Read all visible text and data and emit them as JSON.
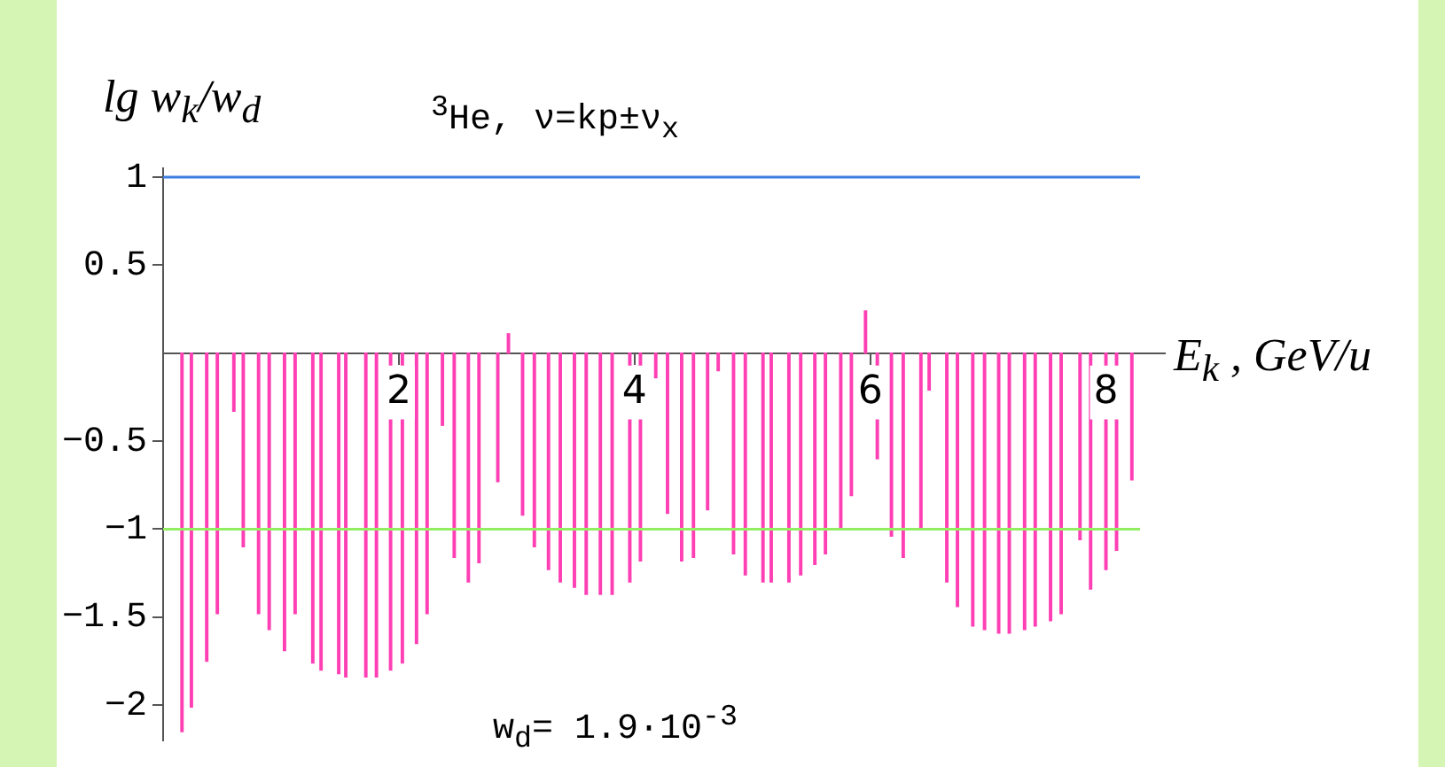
{
  "chart_data": {
    "type": "bar",
    "title": "$^{3}$He,   ν=kp±ν$_{x}$",
    "xlabel": "E$_{k}$ , GeV/u",
    "ylabel": "lg w$_{k}$/w$_{d}$",
    "annotations": [
      "w$_{d}$= 1.9·10$^{-3}$"
    ],
    "x": [
      0.16,
      0.24,
      0.37,
      0.46,
      0.6,
      0.68,
      0.81,
      0.9,
      1.03,
      1.12,
      1.27,
      1.34,
      1.49,
      1.55,
      1.72,
      1.81,
      1.93,
      2.03,
      2.15,
      2.24,
      2.37,
      2.47,
      2.59,
      2.68,
      2.84,
      2.93,
      3.05,
      3.15,
      3.27,
      3.37,
      3.49,
      3.59,
      3.71,
      3.81,
      3.96,
      4.05,
      4.18,
      4.28,
      4.4,
      4.5,
      4.62,
      4.71,
      4.84,
      4.94,
      5.09,
      5.16,
      5.31,
      5.41,
      5.53,
      5.62,
      5.75,
      5.84,
      5.96,
      6.06,
      6.18,
      6.28,
      6.43,
      6.5,
      6.65,
      6.74,
      6.87,
      6.97,
      7.09,
      7.18,
      7.31,
      7.4,
      7.53,
      7.62,
      7.78,
      7.87,
      8.0,
      8.09,
      8.22
    ],
    "values": [
      -2.15,
      -2.01,
      -1.75,
      -1.48,
      -0.33,
      -1.1,
      -1.48,
      -1.57,
      -1.69,
      -1.48,
      -1.76,
      -1.8,
      -1.82,
      -1.84,
      -1.84,
      -1.84,
      -1.8,
      -1.76,
      -1.65,
      -1.48,
      -0.41,
      -1.16,
      -1.3,
      -1.19,
      -0.73,
      0.11,
      -0.92,
      -1.1,
      -1.23,
      -1.3,
      -1.33,
      -1.37,
      -1.37,
      -1.37,
      -1.3,
      -1.18,
      -0.14,
      -0.91,
      -1.18,
      -1.16,
      -0.89,
      -0.1,
      -1.14,
      -1.26,
      -1.3,
      -1.3,
      -1.3,
      -1.26,
      -1.2,
      -1.14,
      -0.99,
      -0.81,
      0.24,
      -0.6,
      -1.04,
      -1.16,
      -0.99,
      -0.21,
      -1.3,
      -1.44,
      -1.55,
      -1.57,
      -1.59,
      -1.59,
      -1.57,
      -1.55,
      -1.52,
      -1.48,
      -1.06,
      -1.34,
      -1.23,
      -1.12,
      -0.72
    ],
    "color": "#ff3fb4",
    "xlim": [
      0,
      8.5
    ],
    "xticks": [
      2,
      4,
      6,
      8
    ],
    "ylim": [
      -2.2,
      1.05
    ],
    "yticks": [
      {
        "value": -2,
        "label": "−2"
      },
      {
        "value": -1.5,
        "label": "−1.5"
      },
      {
        "value": -1,
        "label": "−1"
      },
      {
        "value": -0.5,
        "label": "−0.5"
      },
      {
        "value": 0.5,
        "label": "0.5"
      },
      1
    ],
    "ref_lines": [
      {
        "axis": "y",
        "value": 1,
        "color": "#3c7fe0"
      },
      {
        "axis": "y",
        "value": -1,
        "color": "#90ee60"
      }
    ],
    "grid": false,
    "legend": false
  }
}
